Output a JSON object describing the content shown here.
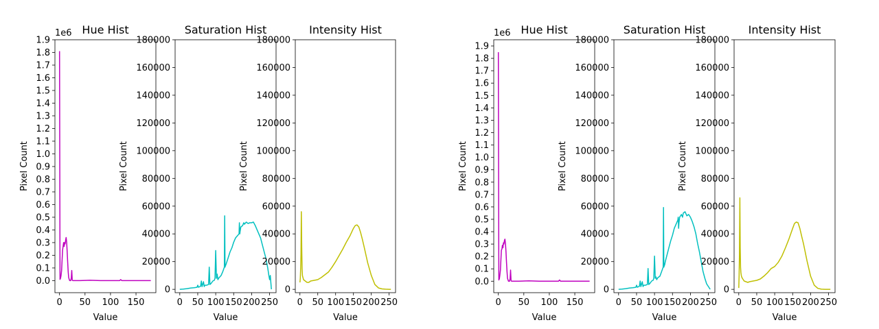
{
  "colors": {
    "hue": "#bf00bf",
    "saturation": "#00bfbf",
    "intensity": "#bfbf00",
    "axes": "#000000"
  },
  "chart_data": [
    {
      "type": "line",
      "title": "Hue Hist",
      "xlabel": "Value",
      "ylabel": "Pixel Count",
      "offset_label": "1e6",
      "color": "#bf00bf",
      "xlim": [
        -9,
        189
      ],
      "ylim": [
        -95000,
        1900000
      ],
      "xticks": [
        0,
        50,
        100,
        150
      ],
      "yticks": [
        0,
        100000,
        200000,
        300000,
        400000,
        500000,
        600000,
        700000,
        800000,
        900000,
        1000000,
        1100000,
        1200000,
        1300000,
        1400000,
        1500000,
        1600000,
        1700000,
        1800000,
        1900000
      ],
      "ytick_labels": [
        "0.0",
        "0.1",
        "0.2",
        "0.3",
        "0.4",
        "0.5",
        "0.6",
        "0.7",
        "0.8",
        "0.9",
        "1.0",
        "1.1",
        "1.2",
        "1.3",
        "1.4",
        "1.5",
        "1.6",
        "1.7",
        "1.8",
        "1.9"
      ],
      "series": [
        {
          "x": [
            0,
            1,
            2,
            3,
            4,
            5,
            6,
            7,
            8,
            9,
            10,
            11,
            12,
            13,
            14,
            15,
            16,
            17,
            18,
            19,
            20,
            21,
            22,
            23,
            24,
            25,
            26,
            27,
            28,
            29,
            30,
            31,
            32,
            40,
            60,
            80,
            100,
            118,
            120,
            122,
            140,
            160,
            179
          ],
          "y": [
            1810000,
            10000,
            20000,
            40000,
            80000,
            160000,
            240000,
            270000,
            300000,
            270000,
            300000,
            290000,
            320000,
            340000,
            300000,
            230000,
            140000,
            70000,
            25000,
            10000,
            0,
            0,
            0,
            20000,
            80000,
            5000,
            0,
            0,
            0,
            0,
            0,
            0,
            0,
            0,
            3000,
            0,
            0,
            0,
            8000,
            0,
            0,
            0,
            0
          ]
        }
      ]
    },
    {
      "type": "line",
      "title": "Saturation Hist",
      "xlabel": "Value",
      "ylabel": "Pixel Count",
      "color": "#00bfbf",
      "xlim": [
        -13,
        268
      ],
      "ylim": [
        -2400,
        180000
      ],
      "xticks": [
        0,
        50,
        100,
        150,
        200,
        250
      ],
      "yticks": [
        0,
        20000,
        40000,
        60000,
        80000,
        100000,
        120000,
        140000,
        160000,
        180000
      ],
      "ytick_labels": [
        "0",
        "20000",
        "40000",
        "60000",
        "80000",
        "100000",
        "120000",
        "140000",
        "160000",
        "180000"
      ],
      "series": [
        {
          "x": [
            0,
            10,
            20,
            30,
            40,
            48,
            50,
            52,
            58,
            60,
            62,
            66,
            68,
            70,
            75,
            80,
            82,
            84,
            86,
            88,
            92,
            96,
            98,
            100,
            102,
            104,
            106,
            108,
            110,
            115,
            120,
            124,
            125,
            126,
            127,
            128,
            130,
            135,
            140,
            145,
            150,
            155,
            160,
            165,
            166,
            167,
            168,
            170,
            175,
            178,
            180,
            185,
            190,
            195,
            200,
            205,
            210,
            215,
            220,
            225,
            230,
            235,
            240,
            245,
            248,
            250,
            252,
            255
          ],
          "y": [
            0,
            200,
            500,
            900,
            1200,
            1500,
            3000,
            1500,
            2200,
            6000,
            2000,
            5500,
            2000,
            3000,
            3000,
            3500,
            16000,
            3500,
            4000,
            4500,
            6000,
            6500,
            8000,
            28000,
            8000,
            11000,
            7000,
            8000,
            8500,
            10000,
            13000,
            16000,
            53000,
            16000,
            17000,
            17500,
            19000,
            23000,
            27000,
            30000,
            34000,
            37000,
            38500,
            40000,
            48000,
            40000,
            42000,
            45000,
            46000,
            48000,
            47000,
            48500,
            47500,
            48000,
            48000,
            48500,
            46000,
            43000,
            40000,
            37000,
            32000,
            27000,
            22000,
            15000,
            10000,
            7000,
            10000,
            0
          ]
        }
      ]
    },
    {
      "type": "line",
      "title": "Intensity Hist",
      "xlabel": "Value",
      "ylabel": "Pixel Count",
      "color": "#bfbf00",
      "xlim": [
        -13,
        268
      ],
      "ylim": [
        -2400,
        180000
      ],
      "xticks": [
        0,
        50,
        100,
        150,
        200,
        250
      ],
      "yticks": [
        0,
        20000,
        40000,
        60000,
        80000,
        100000,
        120000,
        140000,
        160000,
        180000
      ],
      "ytick_labels": [
        "0",
        "20000",
        "40000",
        "60000",
        "80000",
        "100000",
        "120000",
        "140000",
        "160000",
        "180000"
      ],
      "series": [
        {
          "x": [
            0,
            1,
            2,
            3,
            4,
            5,
            6,
            7,
            8,
            10,
            15,
            20,
            25,
            30,
            40,
            50,
            60,
            70,
            80,
            90,
            100,
            110,
            120,
            130,
            140,
            150,
            155,
            160,
            165,
            170,
            175,
            180,
            190,
            200,
            210,
            220,
            230,
            240,
            250,
            255
          ],
          "y": [
            5000,
            8000,
            15000,
            25000,
            56000,
            30000,
            15000,
            10000,
            9000,
            7000,
            6000,
            5000,
            5000,
            6000,
            6500,
            7000,
            8500,
            10500,
            12500,
            16000,
            20000,
            24500,
            29000,
            34000,
            38500,
            44000,
            46000,
            46500,
            45000,
            41000,
            36000,
            30500,
            19000,
            10000,
            3500,
            1000,
            300,
            100,
            0,
            0
          ]
        }
      ]
    },
    {
      "type": "line",
      "title": "Hue Hist",
      "xlabel": "Value",
      "ylabel": "Pixel Count",
      "offset_label": "1e6",
      "color": "#bf00bf",
      "xlim": [
        -9,
        189
      ],
      "ylim": [
        -92500,
        1950000
      ],
      "xticks": [
        0,
        50,
        100,
        150
      ],
      "yticks": [
        0,
        100000,
        200000,
        300000,
        400000,
        500000,
        600000,
        700000,
        800000,
        900000,
        1000000,
        1100000,
        1200000,
        1300000,
        1400000,
        1500000,
        1600000,
        1700000,
        1800000,
        1900000
      ],
      "ytick_labels": [
        "0.0",
        "0.1",
        "0.2",
        "0.3",
        "0.4",
        "0.5",
        "0.6",
        "0.7",
        "0.8",
        "0.9",
        "1.0",
        "1.1",
        "1.2",
        "1.3",
        "1.4",
        "1.5",
        "1.6",
        "1.7",
        "1.8",
        "1.9"
      ],
      "series": [
        {
          "x": [
            0,
            1,
            2,
            3,
            4,
            5,
            6,
            7,
            8,
            9,
            10,
            11,
            12,
            13,
            14,
            15,
            16,
            17,
            18,
            19,
            20,
            21,
            22,
            23,
            24,
            25,
            26,
            27,
            28,
            29,
            30,
            31,
            32,
            40,
            60,
            80,
            100,
            118,
            120,
            122,
            140,
            160,
            179
          ],
          "y": [
            1850000,
            10000,
            20000,
            50000,
            90000,
            170000,
            250000,
            260000,
            290000,
            270000,
            310000,
            300000,
            330000,
            340000,
            300000,
            240000,
            150000,
            80000,
            25000,
            10000,
            0,
            0,
            0,
            20000,
            90000,
            5000,
            0,
            0,
            0,
            0,
            0,
            0,
            0,
            0,
            3000,
            0,
            0,
            0,
            10000,
            0,
            0,
            0,
            0
          ]
        }
      ]
    },
    {
      "type": "line",
      "title": "Saturation Hist",
      "xlabel": "Value",
      "ylabel": "Pixel Count",
      "color": "#00bfbf",
      "xlim": [
        -13,
        268
      ],
      "ylim": [
        -2400,
        180000
      ],
      "xticks": [
        0,
        50,
        100,
        150,
        200,
        250
      ],
      "yticks": [
        0,
        20000,
        40000,
        60000,
        80000,
        100000,
        120000,
        140000,
        160000,
        180000
      ],
      "ytick_labels": [
        "0",
        "20000",
        "40000",
        "60000",
        "80000",
        "100000",
        "120000",
        "140000",
        "160000",
        "180000"
      ],
      "series": [
        {
          "x": [
            0,
            10,
            20,
            30,
            40,
            48,
            50,
            52,
            58,
            60,
            62,
            66,
            68,
            70,
            75,
            80,
            82,
            84,
            86,
            88,
            92,
            96,
            98,
            100,
            102,
            104,
            106,
            108,
            110,
            115,
            120,
            124,
            125,
            126,
            127,
            128,
            130,
            135,
            140,
            145,
            150,
            155,
            160,
            165,
            166,
            167,
            168,
            170,
            175,
            178,
            180,
            185,
            190,
            195,
            200,
            205,
            210,
            215,
            220,
            225,
            230,
            235,
            240,
            245,
            250,
            255
          ],
          "y": [
            0,
            200,
            500,
            900,
            1200,
            1500,
            3000,
            1500,
            2200,
            6000,
            2000,
            5500,
            2000,
            3000,
            3000,
            3500,
            15000,
            3500,
            4000,
            4500,
            6000,
            6500,
            8000,
            24000,
            8000,
            9000,
            7000,
            8000,
            8500,
            9500,
            13000,
            16000,
            59000,
            16000,
            17000,
            17500,
            20000,
            25000,
            30000,
            35000,
            39000,
            44000,
            47000,
            50000,
            52000,
            44000,
            48000,
            52000,
            54000,
            52000,
            55000,
            56000,
            53000,
            54000,
            52000,
            49000,
            45000,
            40000,
            33000,
            27000,
            20000,
            13000,
            8000,
            4000,
            2000,
            0
          ]
        }
      ]
    },
    {
      "type": "line",
      "title": "Intensity Hist",
      "xlabel": "Value",
      "ylabel": "Pixel Count",
      "color": "#bfbf00",
      "xlim": [
        -13,
        268
      ],
      "ylim": [
        -2400,
        180000
      ],
      "xticks": [
        0,
        50,
        100,
        150,
        200,
        250
      ],
      "yticks": [
        0,
        20000,
        40000,
        60000,
        80000,
        100000,
        120000,
        140000,
        160000,
        180000
      ],
      "ytick_labels": [
        "0",
        "20000",
        "40000",
        "60000",
        "80000",
        "100000",
        "120000",
        "140000",
        "160000",
        "180000"
      ],
      "series": [
        {
          "x": [
            0,
            1,
            2,
            3,
            4,
            5,
            6,
            7,
            8,
            10,
            15,
            20,
            25,
            30,
            40,
            50,
            60,
            70,
            80,
            90,
            100,
            110,
            120,
            130,
            140,
            150,
            155,
            160,
            165,
            170,
            175,
            180,
            190,
            200,
            210,
            220,
            230,
            240,
            250,
            255
          ],
          "y": [
            1000,
            10000,
            25000,
            66000,
            30000,
            16000,
            12000,
            10000,
            9000,
            8000,
            6000,
            5500,
            5000,
            5500,
            6000,
            6500,
            7500,
            9500,
            12000,
            15000,
            16500,
            19500,
            24000,
            30000,
            36500,
            44000,
            47500,
            48500,
            48000,
            44000,
            38500,
            33000,
            20500,
            9500,
            3000,
            700,
            100,
            0,
            0,
            0
          ]
        }
      ]
    }
  ]
}
